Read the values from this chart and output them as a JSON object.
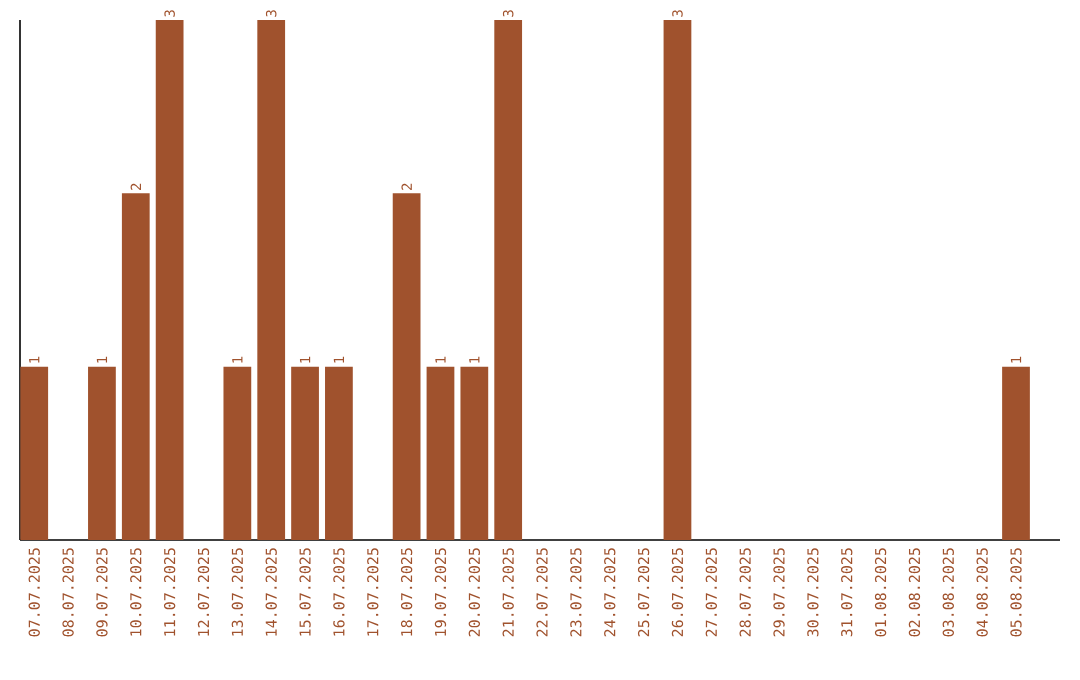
{
  "chart_data": {
    "type": "bar",
    "categories": [
      "07.07.2025",
      "08.07.2025",
      "09.07.2025",
      "10.07.2025",
      "11.07.2025",
      "12.07.2025",
      "13.07.2025",
      "14.07.2025",
      "15.07.2025",
      "16.07.2025",
      "17.07.2025",
      "18.07.2025",
      "19.07.2025",
      "20.07.2025",
      "21.07.2025",
      "22.07.2025",
      "23.07.2025",
      "24.07.2025",
      "25.07.2025",
      "26.07.2025",
      "27.07.2025",
      "28.07.2025",
      "29.07.2025",
      "30.07.2025",
      "31.07.2025",
      "01.08.2025",
      "02.08.2025",
      "03.08.2025",
      "04.08.2025",
      "05.08.2025"
    ],
    "values": [
      1,
      0,
      1,
      2,
      3,
      0,
      1,
      3,
      1,
      1,
      0,
      2,
      1,
      1,
      3,
      0,
      0,
      0,
      0,
      3,
      0,
      0,
      0,
      0,
      0,
      0,
      0,
      0,
      0,
      1
    ],
    "value_labels": [
      "1",
      null,
      "1",
      "2",
      "3",
      null,
      "1",
      "3",
      "1",
      "1",
      null,
      "2",
      "1",
      "1",
      "3",
      null,
      null,
      null,
      null,
      "3",
      null,
      null,
      null,
      null,
      null,
      null,
      null,
      null,
      null,
      "1"
    ],
    "color": "#a0522d",
    "ylim": [
      0,
      3
    ],
    "tick_labels": "x"
  }
}
